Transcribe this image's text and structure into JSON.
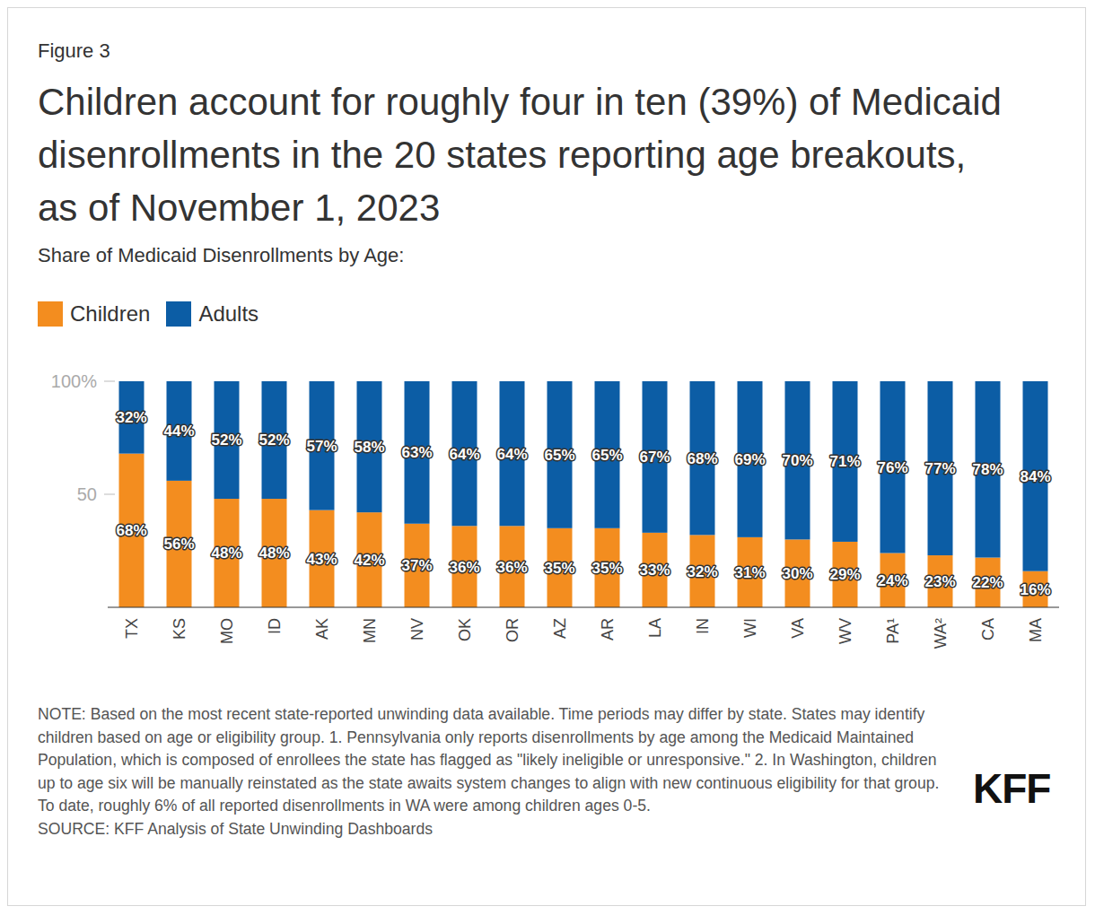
{
  "chart_data": {
    "type": "bar",
    "stacked": true,
    "data_labels": true,
    "grid": false,
    "figure_label": "Figure 3",
    "title": "Children account for roughly four in ten (39%) of Medicaid disenrollments in the 20 states reporting age breakouts, as of November 1, 2023",
    "subtitle": "Share of Medicaid Disenrollments by Age:",
    "legend": "top-left",
    "categories": [
      "TX",
      "KS",
      "MO",
      "ID",
      "AK",
      "MN",
      "NV",
      "OK",
      "OR",
      "AZ",
      "AR",
      "LA",
      "IN",
      "WI",
      "VA",
      "WV",
      "PA¹",
      "WA²",
      "CA",
      "MA"
    ],
    "series": [
      {
        "name": "Children",
        "color": "#f38d1f",
        "values": [
          68,
          56,
          48,
          48,
          43,
          42,
          37,
          36,
          36,
          35,
          35,
          33,
          32,
          31,
          30,
          29,
          24,
          23,
          22,
          16
        ],
        "value_labels": [
          "68%",
          "56%",
          "48%",
          "48%",
          "43%",
          "42%",
          "37%",
          "36%",
          "36%",
          "35%",
          "35%",
          "33%",
          "32%",
          "31%",
          "30%",
          "29%",
          "24%",
          "23%",
          "22%",
          "16%"
        ]
      },
      {
        "name": "Adults",
        "color": "#0c5da5",
        "values": [
          32,
          44,
          52,
          52,
          57,
          58,
          63,
          64,
          64,
          65,
          65,
          67,
          68,
          69,
          70,
          71,
          76,
          77,
          78,
          84
        ],
        "value_labels": [
          "32%",
          "44%",
          "52%",
          "52%",
          "57%",
          "58%",
          "63%",
          "64%",
          "64%",
          "65%",
          "65%",
          "67%",
          "68%",
          "69%",
          "70%",
          "71%",
          "76%",
          "77%",
          "78%",
          "84%"
        ]
      }
    ],
    "ylim": [
      0,
      100
    ],
    "yticks": [
      50,
      {
        "value": 100,
        "label": "100%"
      }
    ],
    "note": "NOTE: Based on the most recent state-reported unwinding data available. Time periods may differ by state. States may identify children based on age or eligibility group. 1. Pennsylvania only reports disenrollments by age among the Medicaid Maintained Population, which is composed of enrollees the state has flagged as \"likely ineligible or unresponsive.\" 2. In Washington, children up to age six will be manually reinstated as the state awaits system changes to align with new continuous eligibility for that group. To date, roughly 6% of all reported disenrollments in WA were among children ages 0-5.",
    "source": "SOURCE: KFF Analysis of State Unwinding Dashboards",
    "logo": "KFF"
  }
}
